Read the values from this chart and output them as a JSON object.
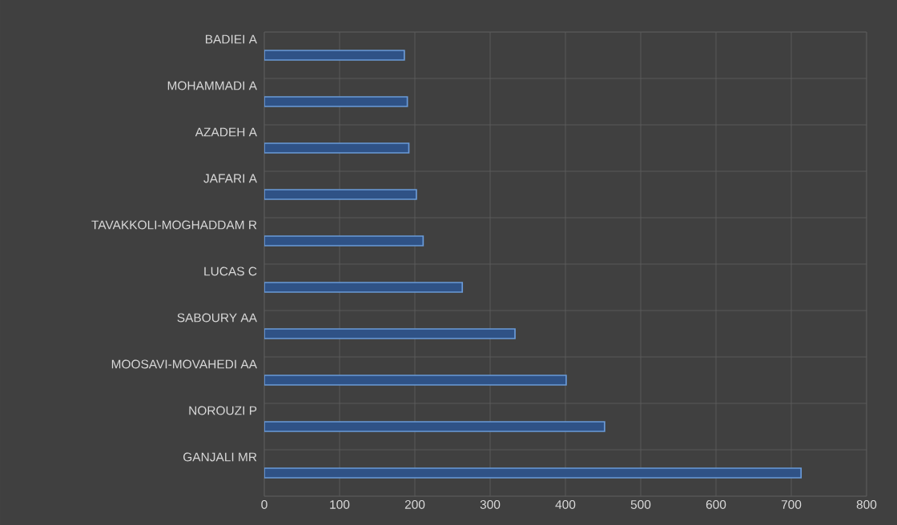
{
  "chart_data": {
    "type": "bar",
    "orientation": "horizontal",
    "categories": [
      "BADIEI A",
      "MOHAMMADI A",
      "AZADEH A",
      "JAFARI A",
      "TAVAKKOLI-MOGHADDAM R",
      "LUCAS C",
      "SABOURY AA",
      "MOOSAVI-MOVAHEDI AA",
      "NOROUZI P",
      "GANJALI MR"
    ],
    "values": [
      186,
      190,
      192,
      202,
      211,
      263,
      333,
      401,
      452,
      713
    ],
    "color": "#2f5286",
    "xlim": [
      0,
      800
    ],
    "xticks": [
      0,
      100,
      200,
      300,
      400,
      500,
      600,
      700,
      800
    ],
    "grid": true
  }
}
